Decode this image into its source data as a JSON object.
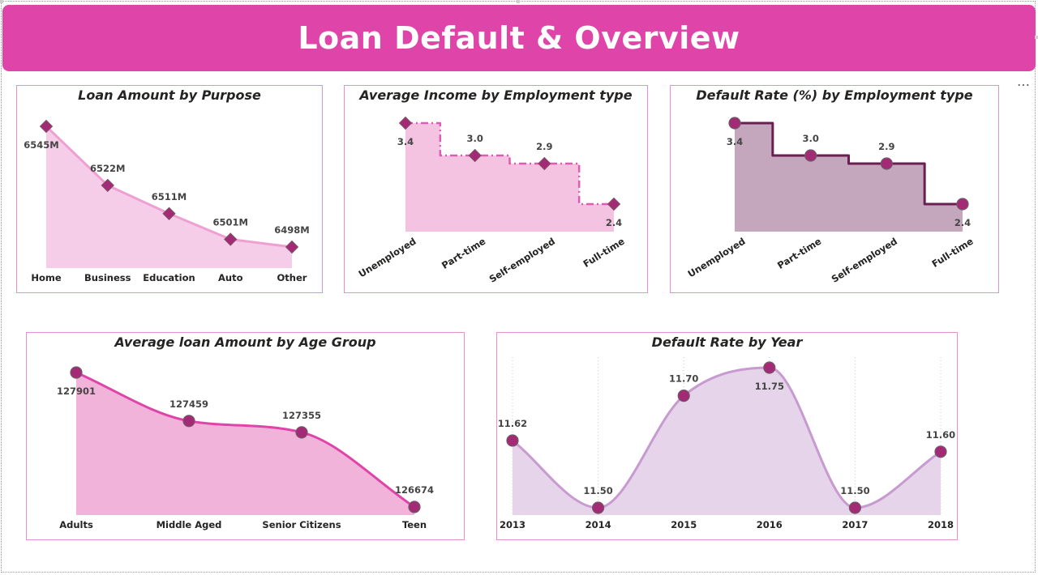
{
  "header": {
    "title": "Loan Default & Overview"
  },
  "colors": {
    "banner": "#df44a8",
    "card_border": "#e58fcf",
    "marker": "#a52a75",
    "pink_light": "#f6cde8",
    "pink_mid": "#f2b3db",
    "mauve": "#c4a6bd",
    "lavender": "#e6d4ea"
  },
  "charts": {
    "purpose": {
      "title": "Loan Amount by Purpose",
      "chart_data": {
        "type": "area",
        "categories": [
          "Home",
          "Business",
          "Education",
          "Auto",
          "Other"
        ],
        "values": [
          6545,
          6522,
          6511,
          6501,
          6498
        ],
        "data_labels": [
          "6545M",
          "6522M",
          "6511M",
          "6501M",
          "6498M"
        ],
        "unit": "M",
        "marker": "diamond",
        "grid": false
      }
    },
    "income": {
      "title": "Average Income by Employment type",
      "chart_data": {
        "type": "area",
        "step": true,
        "categories": [
          "Unemployed",
          "Part-time",
          "Self-employed",
          "Full-time"
        ],
        "values": [
          3.4,
          3.0,
          2.9,
          2.4
        ],
        "data_labels": [
          "3.4",
          "3.0",
          "2.9",
          "2.4"
        ],
        "line_style": "dash-dot",
        "marker": "diamond",
        "grid": false
      }
    },
    "default_emp": {
      "title": "Default Rate (%) by Employment type",
      "chart_data": {
        "type": "area",
        "step": true,
        "categories": [
          "Unemployed",
          "Part-time",
          "Self-employed",
          "Full-time"
        ],
        "values": [
          3.4,
          3.0,
          2.9,
          2.4
        ],
        "data_labels": [
          "3.4",
          "3.0",
          "2.9",
          "2.4"
        ],
        "marker": "circle",
        "grid": false
      }
    },
    "age": {
      "title": "Average loan Amount by Age Group",
      "chart_data": {
        "type": "area",
        "smooth": true,
        "categories": [
          "Adults",
          "Middle Aged",
          "Senior Citizens",
          "Teen"
        ],
        "values": [
          127901,
          127459,
          127355,
          126674
        ],
        "data_labels": [
          "127901",
          "127459",
          "127355",
          "126674"
        ],
        "marker": "circle",
        "grid": false
      }
    },
    "year": {
      "title": "Default Rate by Year",
      "chart_data": {
        "type": "area",
        "smooth": true,
        "categories": [
          "2013",
          "2014",
          "2015",
          "2016",
          "2017",
          "2018"
        ],
        "values": [
          11.62,
          11.5,
          11.7,
          11.75,
          11.5,
          11.6
        ],
        "data_labels": [
          "11.62",
          "11.50",
          "11.70",
          "11.75",
          "11.50",
          "11.60"
        ],
        "marker": "circle",
        "grid": "vertical-dotted"
      }
    }
  }
}
